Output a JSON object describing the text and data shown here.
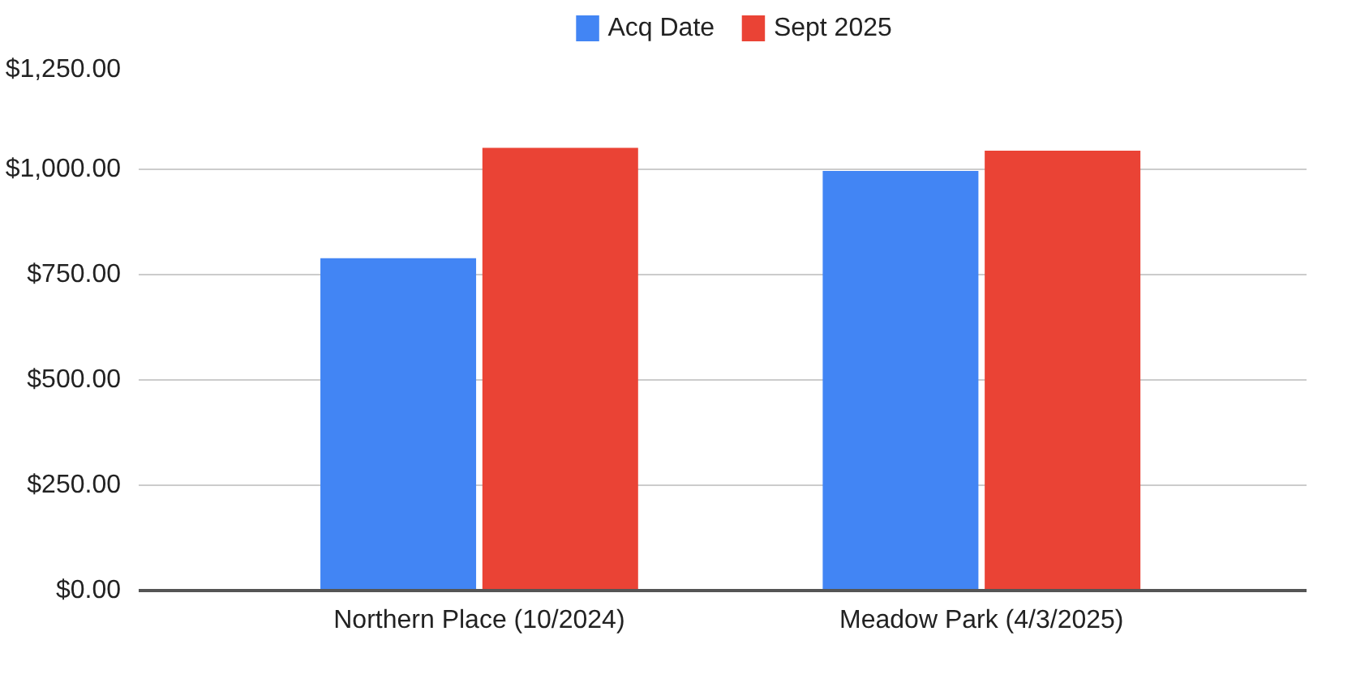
{
  "chart_data": {
    "type": "bar",
    "categories": [
      "Northern Place (10/2024)",
      "Meadow Park (4/3/2025)"
    ],
    "series": [
      {
        "name": "Acq Date",
        "color": "#4285f4",
        "values": [
          789,
          996
        ]
      },
      {
        "name": "Sept 2025",
        "color": "#ea4335",
        "values": [
          1051,
          1044
        ]
      }
    ],
    "ylim": [
      0,
      1250
    ],
    "yticks": [
      {
        "value": 0,
        "label": "$0.00"
      },
      {
        "value": 250,
        "label": "$250.00"
      },
      {
        "value": 500,
        "label": "$500.00"
      },
      {
        "value": 750,
        "label": "$750.00"
      },
      {
        "value": 1000,
        "label": "$1,000.00"
      },
      {
        "value": 1250,
        "label": "$1,250.00"
      }
    ],
    "grid": "y",
    "legend": "top"
  }
}
